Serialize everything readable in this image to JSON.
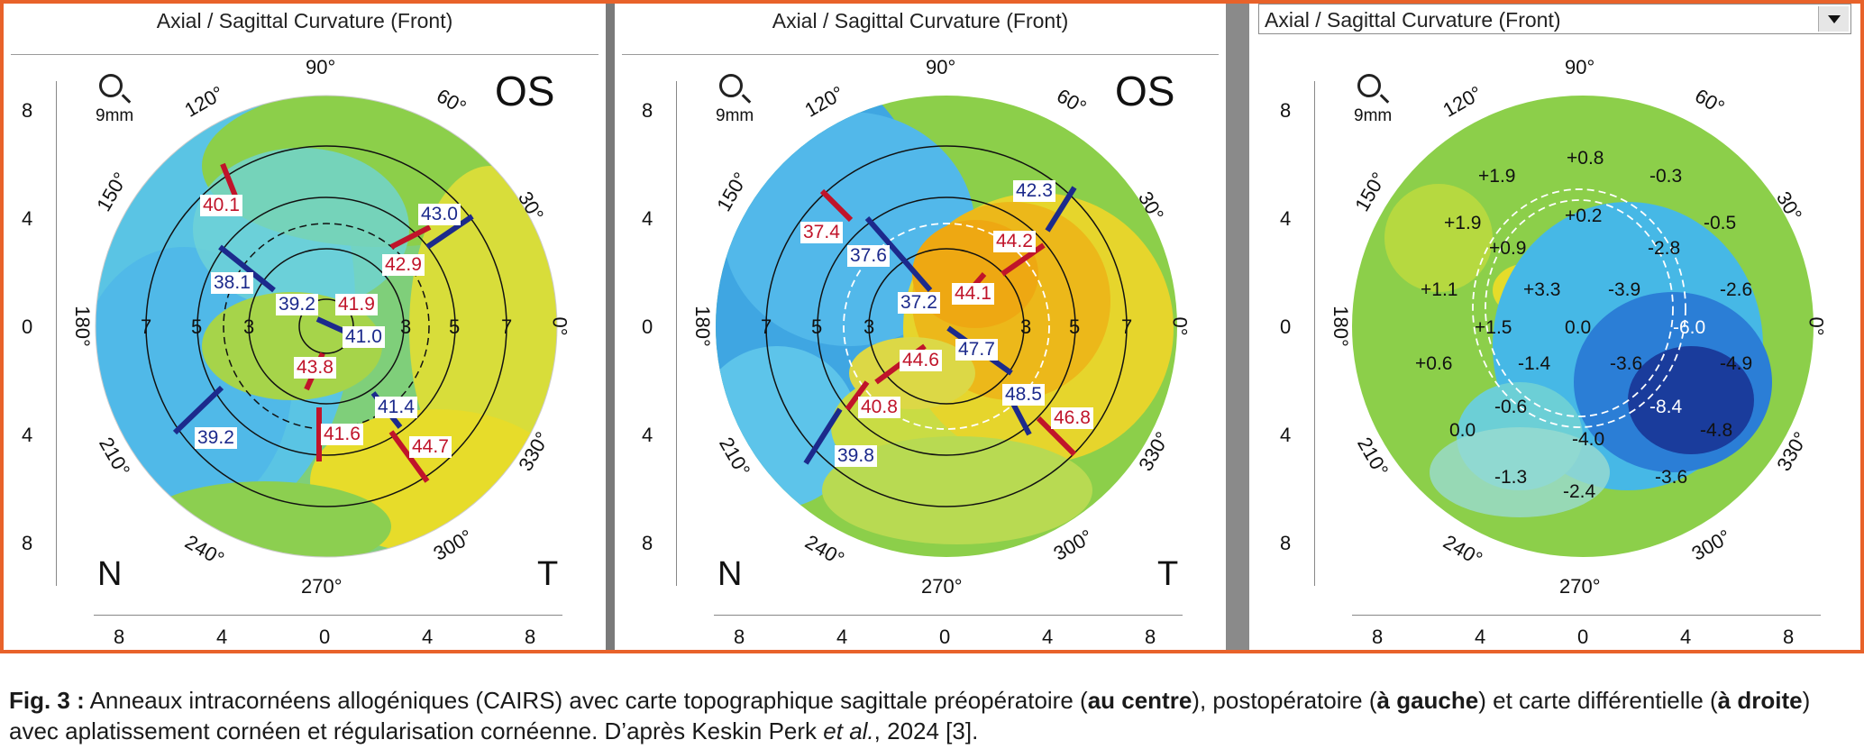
{
  "panels": [
    {
      "title": "Axial / Sagittal Curvature (Front)",
      "has_dropdown": false,
      "eye": "OS",
      "nasal_label": "N",
      "temporal_label": "T",
      "zoom_label": "9mm",
      "angle_labels": [
        "90°",
        "60°",
        "30°",
        "0°",
        "330°",
        "300°",
        "270°",
        "240°",
        "210°",
        "180°",
        "150°",
        "120°"
      ],
      "ring_labels": [
        "7",
        "5",
        "3",
        "3",
        "5",
        "7"
      ],
      "y_ticks": [
        "8",
        "4",
        "0",
        "4",
        "8"
      ],
      "x_ticks": [
        "8",
        "4",
        "0",
        "4",
        "8"
      ],
      "readings": [
        {
          "text": "40.1",
          "color": "red"
        },
        {
          "text": "43.0",
          "color": "blue"
        },
        {
          "text": "42.9",
          "color": "red"
        },
        {
          "text": "38.1",
          "color": "blue"
        },
        {
          "text": "39.2",
          "color": "blue"
        },
        {
          "text": "41.9",
          "color": "red"
        },
        {
          "text": "41.0",
          "color": "blue"
        },
        {
          "text": "43.8",
          "color": "red"
        },
        {
          "text": "41.4",
          "color": "blue"
        },
        {
          "text": "39.2",
          "color": "blue"
        },
        {
          "text": "41.6",
          "color": "red"
        },
        {
          "text": "44.7",
          "color": "red"
        }
      ]
    },
    {
      "title": "Axial / Sagittal Curvature (Front)",
      "has_dropdown": false,
      "eye": "OS",
      "nasal_label": "N",
      "temporal_label": "T",
      "zoom_label": "9mm",
      "angle_labels": [
        "90°",
        "60°",
        "30°",
        "0°",
        "330°",
        "300°",
        "270°",
        "240°",
        "210°",
        "180°",
        "150°",
        "120°"
      ],
      "ring_labels": [
        "7",
        "5",
        "3",
        "3",
        "5",
        "7"
      ],
      "y_ticks": [
        "8",
        "4",
        "0",
        "4",
        "8"
      ],
      "x_ticks": [
        "8",
        "4",
        "0",
        "4",
        "8"
      ],
      "readings": [
        {
          "text": "42.3",
          "color": "blue"
        },
        {
          "text": "37.4",
          "color": "red"
        },
        {
          "text": "44.2",
          "color": "red"
        },
        {
          "text": "37.6",
          "color": "blue"
        },
        {
          "text": "37.2",
          "color": "blue"
        },
        {
          "text": "44.1",
          "color": "red"
        },
        {
          "text": "47.7",
          "color": "blue"
        },
        {
          "text": "44.6",
          "color": "red"
        },
        {
          "text": "40.8",
          "color": "red"
        },
        {
          "text": "48.5",
          "color": "blue"
        },
        {
          "text": "46.8",
          "color": "red"
        },
        {
          "text": "39.8",
          "color": "blue"
        }
      ]
    },
    {
      "title": "Axial / Sagittal Curvature (Front)",
      "has_dropdown": true,
      "zoom_label": "9mm",
      "angle_labels": [
        "90°",
        "60°",
        "30°",
        "0°",
        "330°",
        "300°",
        "270°",
        "240°",
        "210°",
        "180°",
        "150°",
        "120°"
      ],
      "y_ticks": [
        "8",
        "4",
        "0",
        "4",
        "8"
      ],
      "x_ticks": [
        "8",
        "4",
        "0",
        "4",
        "8"
      ],
      "diff_values": [
        "+0.8",
        "+1.9",
        "-0.3",
        "+1.9",
        "+0.2",
        "-0.5",
        "+0.9",
        "-2.8",
        "+1.1",
        "+3.3",
        "-3.9",
        "-2.6",
        "+1.5",
        "0.0",
        "-6.0",
        "+0.6",
        "-1.4",
        "-3.6",
        "-4.9",
        "-0.6",
        "-8.4",
        "0.0",
        "-4.0",
        "-4.8",
        "-1.3",
        "-2.4",
        "-3.6"
      ]
    }
  ],
  "caption": {
    "lead": "Fig. 3 :",
    "t1": " Anneaux intracornéens allogéniques (CAIRS) avec carte topographique sagittale préopératoire (",
    "b1": "au centre",
    "t2": "), postopératoire (",
    "b2": "à gauche",
    "t3": ") et carte différentielle (",
    "b3": "à droite",
    "t4": ") avec aplatissement cornéen et régularisation cornéenne. D’après Keskin Perk ",
    "i1": "et al.",
    "t5": ", 2024 [3]."
  },
  "colors": {
    "frame": "#e8622a",
    "red_label": "#c0142a",
    "blue_label": "#1c2a8c",
    "divider": "#7a7a7a"
  }
}
